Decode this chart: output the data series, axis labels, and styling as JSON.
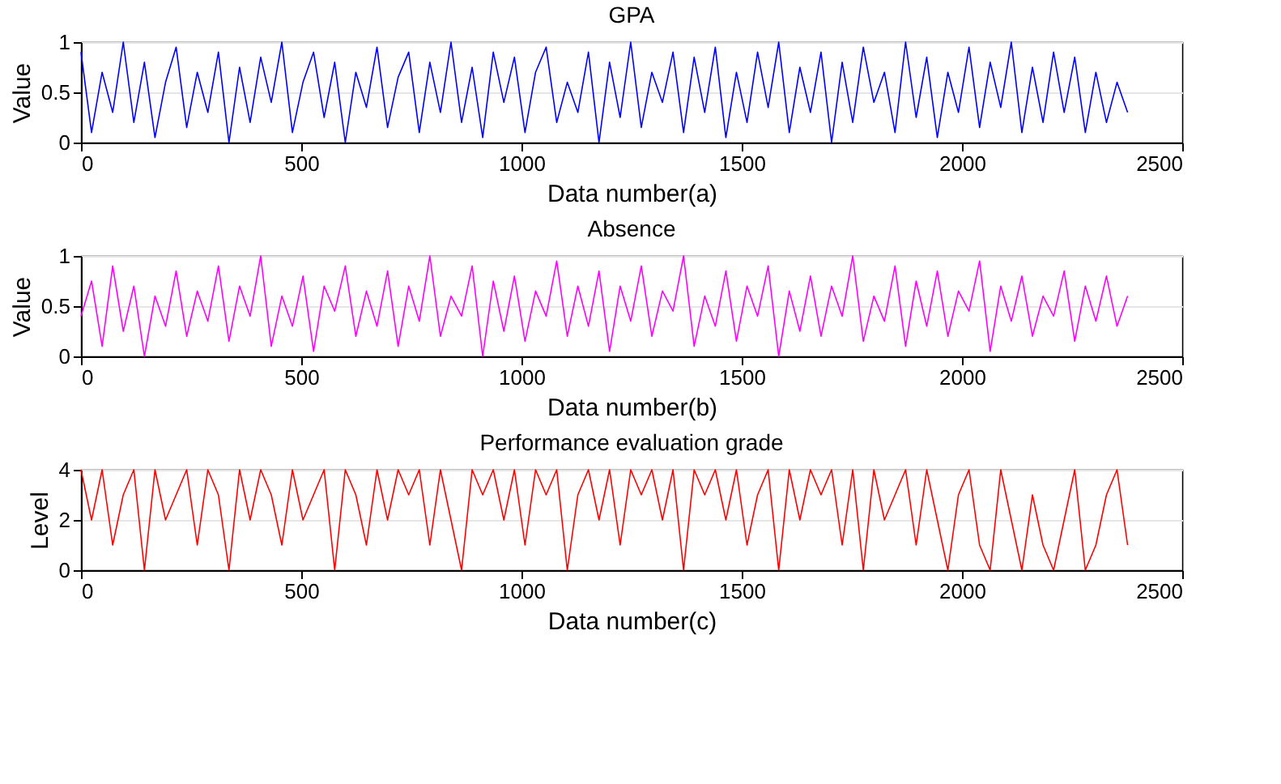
{
  "chart_data": [
    {
      "type": "line",
      "title": "GPA",
      "xlabel": "Data number(a)",
      "ylabel": "Value",
      "xlim": [
        0,
        2500
      ],
      "xticks": [
        0,
        500,
        1000,
        1500,
        2000,
        2500
      ],
      "ylim": [
        0,
        1
      ],
      "yticks": [
        0,
        0.5,
        1
      ],
      "grid": "y",
      "x": [
        0,
        24,
        48,
        72,
        96,
        120,
        144,
        168,
        192,
        216,
        240,
        264,
        288,
        312,
        336,
        360,
        384,
        408,
        432,
        456,
        480,
        504,
        528,
        552,
        576,
        600,
        624,
        648,
        672,
        696,
        720,
        744,
        768,
        792,
        816,
        840,
        864,
        888,
        912,
        936,
        960,
        984,
        1008,
        1032,
        1056,
        1080,
        1104,
        1128,
        1152,
        1176,
        1200,
        1224,
        1248,
        1272,
        1296,
        1320,
        1344,
        1368,
        1392,
        1416,
        1440,
        1464,
        1488,
        1512,
        1536,
        1560,
        1584,
        1608,
        1632,
        1656,
        1680,
        1704,
        1728,
        1752,
        1776,
        1800,
        1824,
        1848,
        1872,
        1896,
        1920,
        1944,
        1968,
        1992,
        2016,
        2040,
        2064,
        2088,
        2112,
        2136,
        2160,
        2184,
        2208,
        2232,
        2256,
        2280,
        2304,
        2328,
        2352,
        2376
      ],
      "series": [
        {
          "color": "#0000ff",
          "values": [
            0.9,
            0.1,
            0.7,
            0.3,
            1,
            0.2,
            0.8,
            0.05,
            0.6,
            0.95,
            0.15,
            0.7,
            0.3,
            0.9,
            0,
            0.75,
            0.2,
            0.85,
            0.4,
            1,
            0.1,
            0.6,
            0.9,
            0.25,
            0.8,
            0,
            0.7,
            0.35,
            0.95,
            0.15,
            0.65,
            0.9,
            0.1,
            0.8,
            0.3,
            1,
            0.2,
            0.75,
            0.05,
            0.9,
            0.4,
            0.85,
            0.1,
            0.7,
            0.95,
            0.2,
            0.6,
            0.3,
            0.9,
            0,
            0.8,
            0.25,
            1,
            0.15,
            0.7,
            0.4,
            0.9,
            0.1,
            0.85,
            0.3,
            0.95,
            0.05,
            0.7,
            0.2,
            0.9,
            0.35,
            1,
            0.1,
            0.75,
            0.3,
            0.9,
            0,
            0.8,
            0.2,
            0.95,
            0.4,
            0.7,
            0.1,
            1,
            0.25,
            0.85,
            0.05,
            0.7,
            0.3,
            0.95,
            0.15,
            0.8,
            0.35,
            1,
            0.1,
            0.75,
            0.2,
            0.9,
            0.3,
            0.85,
            0.1,
            0.7,
            0.2,
            0.6,
            0.3
          ]
        }
      ]
    },
    {
      "type": "line",
      "title": "Absence",
      "xlabel": "Data number(b)",
      "ylabel": "Value",
      "xlim": [
        0,
        2500
      ],
      "xticks": [
        0,
        500,
        1000,
        1500,
        2000,
        2500
      ],
      "ylim": [
        0,
        1
      ],
      "yticks": [
        0,
        0.5,
        1
      ],
      "grid": "y",
      "x": [
        0,
        24,
        48,
        72,
        96,
        120,
        144,
        168,
        192,
        216,
        240,
        264,
        288,
        312,
        336,
        360,
        384,
        408,
        432,
        456,
        480,
        504,
        528,
        552,
        576,
        600,
        624,
        648,
        672,
        696,
        720,
        744,
        768,
        792,
        816,
        840,
        864,
        888,
        912,
        936,
        960,
        984,
        1008,
        1032,
        1056,
        1080,
        1104,
        1128,
        1152,
        1176,
        1200,
        1224,
        1248,
        1272,
        1296,
        1320,
        1344,
        1368,
        1392,
        1416,
        1440,
        1464,
        1488,
        1512,
        1536,
        1560,
        1584,
        1608,
        1632,
        1656,
        1680,
        1704,
        1728,
        1752,
        1776,
        1800,
        1824,
        1848,
        1872,
        1896,
        1920,
        1944,
        1968,
        1992,
        2016,
        2040,
        2064,
        2088,
        2112,
        2136,
        2160,
        2184,
        2208,
        2232,
        2256,
        2280,
        2304,
        2328,
        2352,
        2376
      ],
      "series": [
        {
          "color": "#ff00ff",
          "values": [
            0.4,
            0.75,
            0.1,
            0.9,
            0.25,
            0.7,
            0,
            0.6,
            0.3,
            0.85,
            0.2,
            0.65,
            0.35,
            0.9,
            0.15,
            0.7,
            0.4,
            1,
            0.1,
            0.6,
            0.3,
            0.8,
            0.05,
            0.7,
            0.45,
            0.9,
            0.2,
            0.65,
            0.3,
            0.85,
            0.1,
            0.7,
            0.35,
            1,
            0.2,
            0.6,
            0.4,
            0.9,
            0,
            0.75,
            0.25,
            0.8,
            0.15,
            0.65,
            0.4,
            0.95,
            0.2,
            0.7,
            0.3,
            0.85,
            0.05,
            0.7,
            0.35,
            0.9,
            0.2,
            0.65,
            0.45,
            1,
            0.1,
            0.6,
            0.3,
            0.85,
            0.15,
            0.7,
            0.4,
            0.9,
            0,
            0.65,
            0.25,
            0.8,
            0.2,
            0.7,
            0.4,
            1,
            0.15,
            0.6,
            0.35,
            0.9,
            0.1,
            0.75,
            0.3,
            0.85,
            0.2,
            0.65,
            0.45,
            0.95,
            0.05,
            0.7,
            0.35,
            0.8,
            0.2,
            0.6,
            0.4,
            0.85,
            0.15,
            0.7,
            0.35,
            0.8,
            0.3,
            0.6
          ]
        }
      ]
    },
    {
      "type": "line",
      "title": "Performance evaluation grade",
      "xlabel": "Data number(c)",
      "ylabel": "Level",
      "xlim": [
        0,
        2500
      ],
      "xticks": [
        0,
        500,
        1000,
        1500,
        2000,
        2500
      ],
      "ylim": [
        0,
        4
      ],
      "yticks": [
        0,
        2,
        4
      ],
      "grid": "y",
      "x": [
        0,
        24,
        48,
        72,
        96,
        120,
        144,
        168,
        192,
        216,
        240,
        264,
        288,
        312,
        336,
        360,
        384,
        408,
        432,
        456,
        480,
        504,
        528,
        552,
        576,
        600,
        624,
        648,
        672,
        696,
        720,
        744,
        768,
        792,
        816,
        840,
        864,
        888,
        912,
        936,
        960,
        984,
        1008,
        1032,
        1056,
        1080,
        1104,
        1128,
        1152,
        1176,
        1200,
        1224,
        1248,
        1272,
        1296,
        1320,
        1344,
        1368,
        1392,
        1416,
        1440,
        1464,
        1488,
        1512,
        1536,
        1560,
        1584,
        1608,
        1632,
        1656,
        1680,
        1704,
        1728,
        1752,
        1776,
        1800,
        1824,
        1848,
        1872,
        1896,
        1920,
        1944,
        1968,
        1992,
        2016,
        2040,
        2064,
        2088,
        2112,
        2136,
        2160,
        2184,
        2208,
        2232,
        2256,
        2280,
        2304,
        2328,
        2352,
        2376
      ],
      "series": [
        {
          "color": "#ff0000",
          "values": [
            4,
            2,
            4,
            1,
            3,
            4,
            0,
            4,
            2,
            3,
            4,
            1,
            4,
            3,
            0,
            4,
            2,
            4,
            3,
            1,
            4,
            2,
            3,
            4,
            0,
            4,
            3,
            1,
            4,
            2,
            4,
            3,
            4,
            1,
            4,
            2,
            0,
            4,
            3,
            4,
            2,
            4,
            1,
            4,
            3,
            4,
            0,
            3,
            4,
            2,
            4,
            1,
            4,
            3,
            4,
            2,
            4,
            0,
            4,
            3,
            4,
            2,
            4,
            1,
            3,
            4,
            0,
            4,
            2,
            4,
            3,
            4,
            1,
            4,
            0,
            4,
            2,
            3,
            4,
            1,
            4,
            2,
            0,
            3,
            4,
            1,
            0,
            4,
            2,
            0,
            3,
            1,
            0,
            2,
            4,
            0,
            1,
            3,
            4,
            1
          ]
        }
      ]
    }
  ]
}
